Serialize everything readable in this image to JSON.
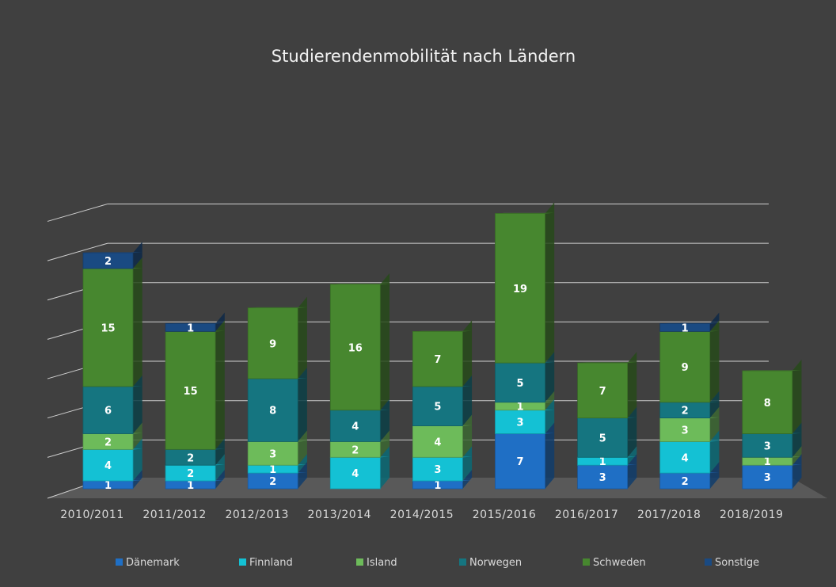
{
  "chart_data": {
    "type": "bar",
    "stacked": true,
    "title": "Studierendenmobilität nach Ländern",
    "categories": [
      "2010/2011",
      "2011/2012",
      "2012/2013",
      "2013/2014",
      "2014/2015",
      "2015/2016",
      "2016/2017",
      "2017/2018",
      "2018/2019"
    ],
    "series": [
      {
        "name": "Dänemark",
        "color": "#1f6fc5",
        "values": [
          1,
          1,
          2,
          0,
          1,
          7,
          3,
          2,
          3
        ]
      },
      {
        "name": "Finnland",
        "color": "#14c1d4",
        "values": [
          4,
          2,
          1,
          4,
          3,
          3,
          1,
          4,
          0
        ]
      },
      {
        "name": "Island",
        "color": "#6dbb5a",
        "values": [
          2,
          0,
          3,
          2,
          4,
          1,
          0,
          3,
          1
        ]
      },
      {
        "name": "Norwegen",
        "color": "#157580",
        "values": [
          6,
          2,
          8,
          4,
          5,
          5,
          5,
          2,
          3
        ]
      },
      {
        "name": "Schweden",
        "color": "#47872f",
        "values": [
          15,
          15,
          9,
          16,
          7,
          19,
          7,
          9,
          8
        ]
      },
      {
        "name": "Sonstige",
        "color": "#1a4a82",
        "values": [
          2,
          1,
          0,
          0,
          0,
          0,
          0,
          1,
          0
        ]
      }
    ],
    "ylim": [
      0,
      35
    ],
    "grid": true,
    "legend": "bottom"
  }
}
